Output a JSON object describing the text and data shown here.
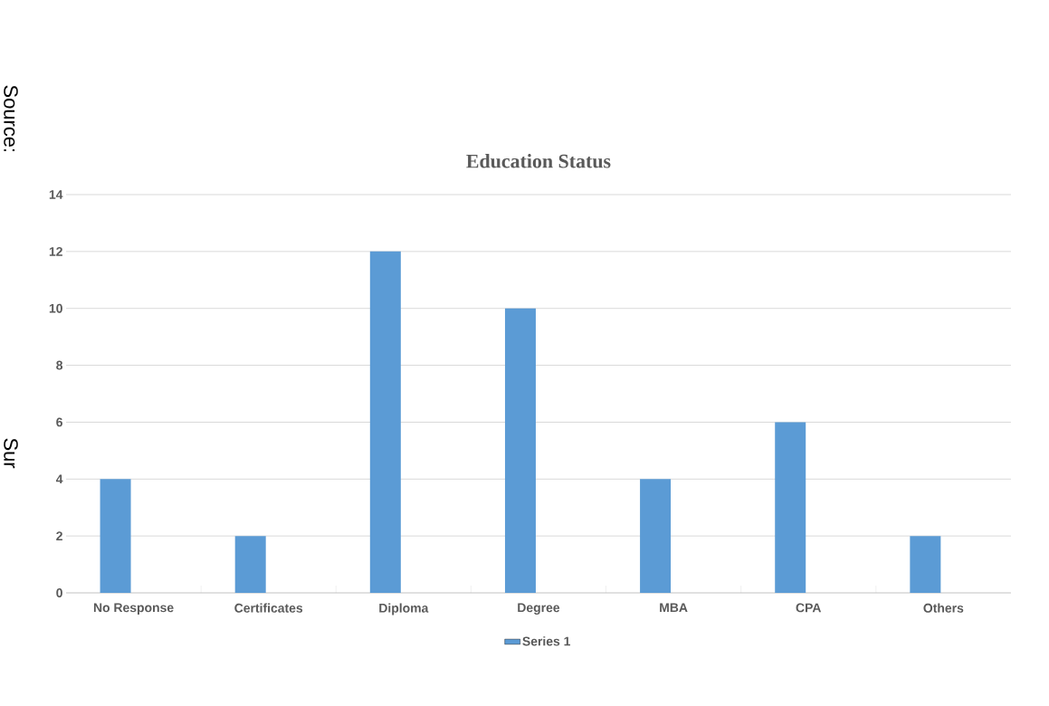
{
  "chart_data": {
    "type": "bar",
    "title": "Education Status",
    "categories": [
      "No Response",
      "Certificates",
      "Diploma",
      "Degree",
      "MBA",
      "CPA",
      "Others"
    ],
    "series": [
      {
        "name": "Series 1",
        "color": "#5b9bd5",
        "values": [
          4,
          2,
          12,
          10,
          4,
          6,
          2
        ]
      }
    ],
    "ylim": [
      0,
      14
    ],
    "yticks": [
      0,
      2,
      4,
      6,
      8,
      10,
      12,
      14
    ],
    "grid": "y",
    "legend": "bottom",
    "annotations": [
      "Source:",
      "Sur"
    ]
  }
}
